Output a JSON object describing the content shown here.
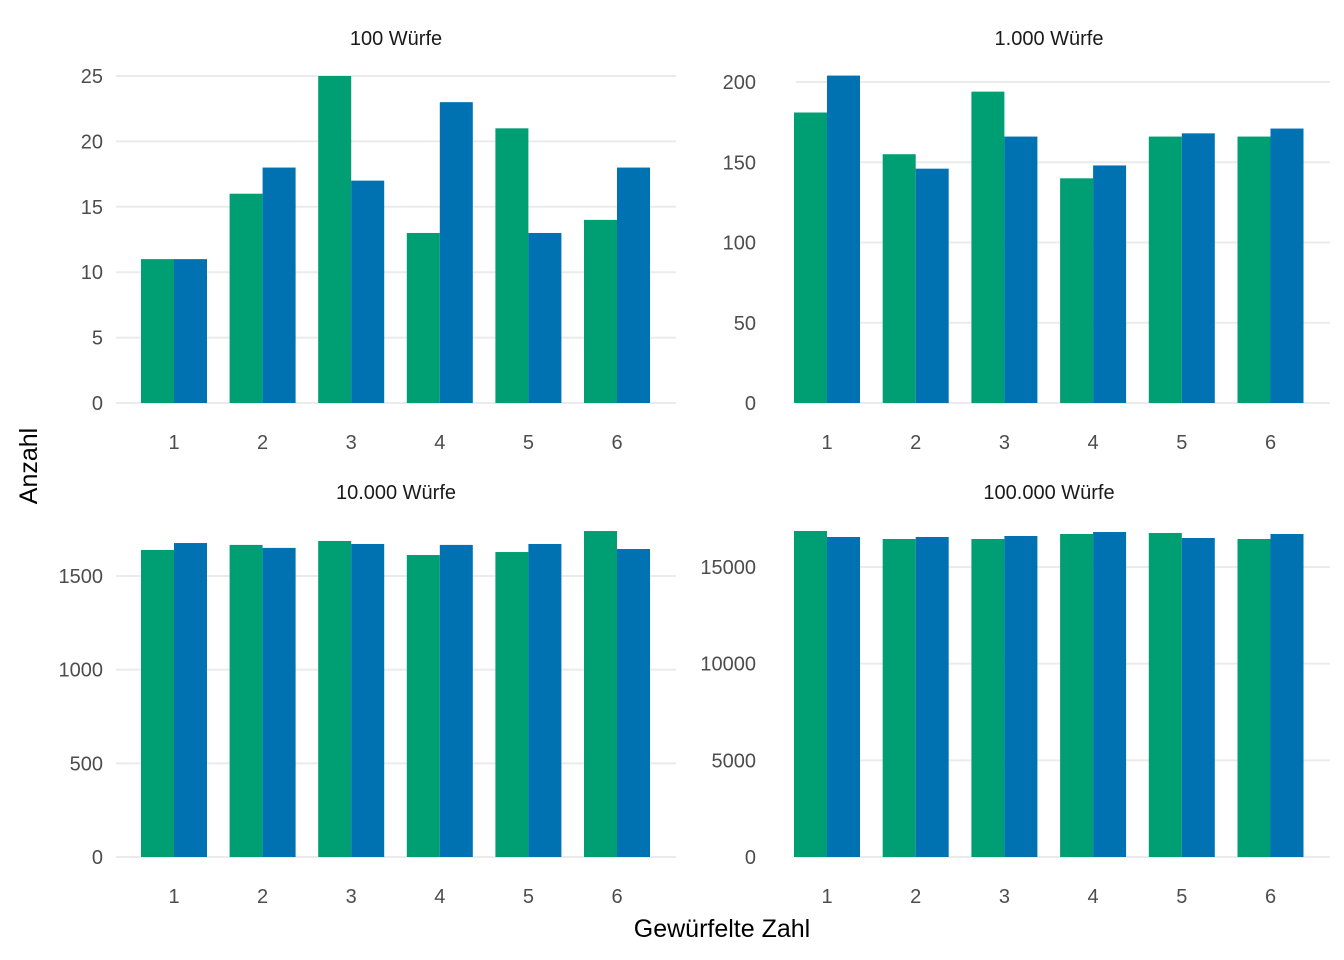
{
  "chart_data": {
    "type": "bar",
    "xlabel": "Gewürfelte Zahl",
    "ylabel": "Anzahl",
    "grid": true,
    "series_colors": [
      "#009E73",
      "#0072B2"
    ],
    "panels": [
      {
        "title": "100 Würfe",
        "categories": [
          "1",
          "2",
          "3",
          "4",
          "5",
          "6"
        ],
        "yticks": [
          0,
          5,
          10,
          15,
          20,
          25
        ],
        "ylim": [
          0,
          25
        ],
        "series": [
          {
            "name": "green",
            "values": [
              11,
              16,
              25,
              13,
              21,
              14
            ]
          },
          {
            "name": "blue",
            "values": [
              11,
              18,
              17,
              23,
              13,
              18
            ]
          }
        ]
      },
      {
        "title": "1.000 Würfe",
        "categories": [
          "1",
          "2",
          "3",
          "4",
          "5",
          "6"
        ],
        "yticks": [
          0,
          50,
          100,
          150,
          200
        ],
        "ylim": [
          0,
          200
        ],
        "series": [
          {
            "name": "green",
            "values": [
              181,
              155,
              194,
              140,
              166,
              166
            ]
          },
          {
            "name": "blue",
            "values": [
              204,
              146,
              166,
              148,
              168,
              171
            ]
          }
        ]
      },
      {
        "title": "10.000 Würfe",
        "categories": [
          "1",
          "2",
          "3",
          "4",
          "5",
          "6"
        ],
        "yticks": [
          0,
          500,
          1000,
          1500
        ],
        "ylim": [
          0,
          1500
        ],
        "series": [
          {
            "name": "green",
            "values": [
              1639,
              1666,
              1687,
              1612,
              1628,
              1740
            ]
          },
          {
            "name": "blue",
            "values": [
              1676,
              1650,
              1671,
              1666,
              1671,
              1644
            ]
          }
        ]
      },
      {
        "title": "100.000 Würfe",
        "categories": [
          "1",
          "2",
          "3",
          "4",
          "5",
          "6"
        ],
        "yticks": [
          0,
          5000,
          10000,
          15000
        ],
        "ylim": [
          0,
          15000
        ],
        "series": [
          {
            "name": "green",
            "values": [
              16862,
              16448,
              16448,
              16707,
              16759,
              16448
            ]
          },
          {
            "name": "blue",
            "values": [
              16552,
              16552,
              16603,
              16810,
              16500,
              16707
            ]
          }
        ]
      }
    ]
  }
}
